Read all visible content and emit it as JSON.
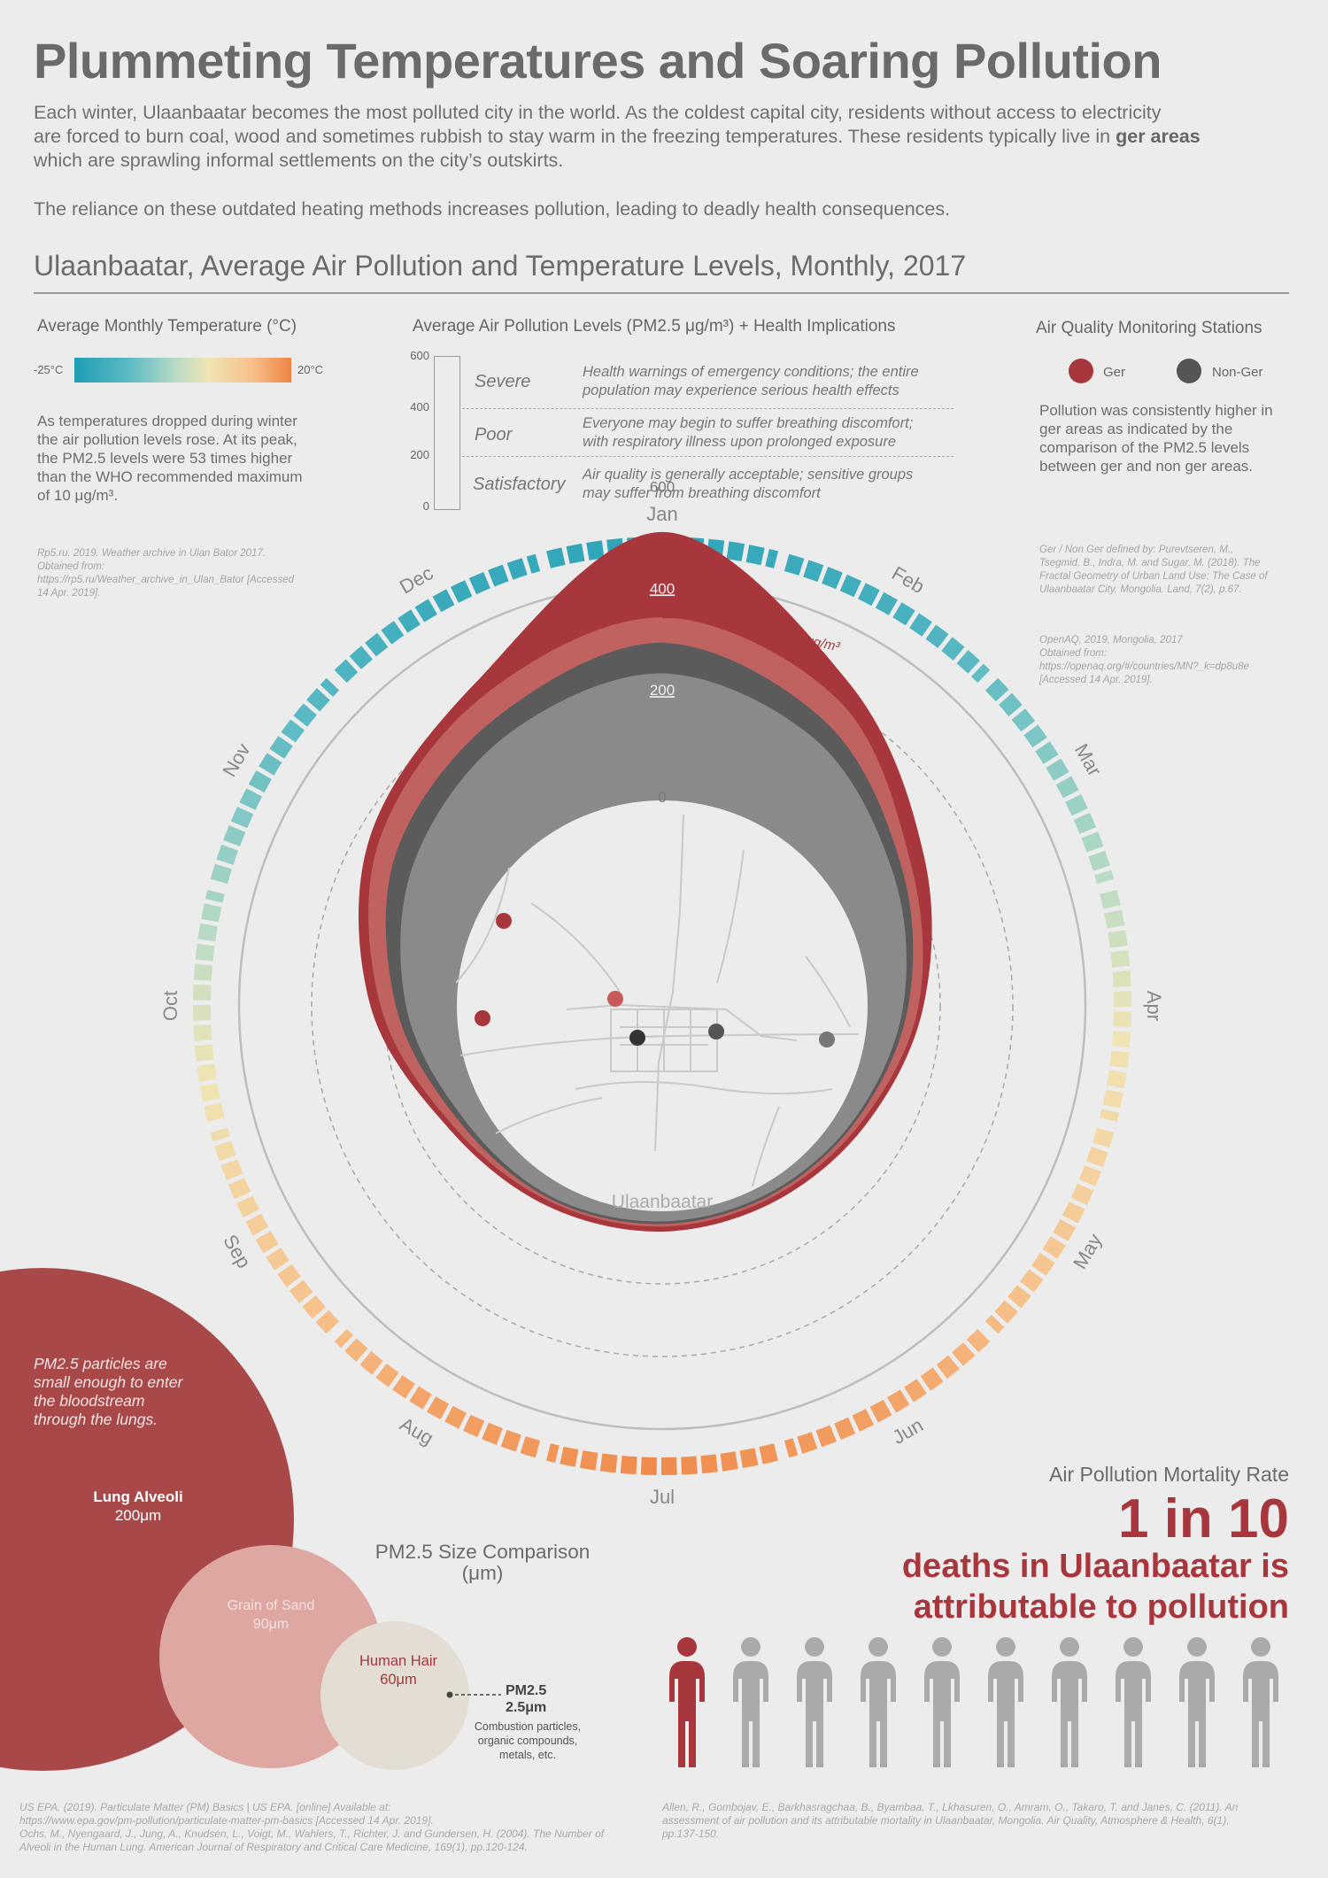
{
  "header": {
    "title": "Plummeting Temperatures and Soaring Pollution",
    "intro_lines": [
      "Each winter, Ulaanbaatar becomes the most polluted city in the world. As the coldest capital city, residents without access to electricity",
      "are forced to burn coal, wood and sometimes rubbish to stay warm in the freezing temperatures. These residents typically live in ger areas",
      "which are sprawling informal settlements on the city’s outskirts."
    ],
    "intro_bold": "ger areas",
    "intro2": "The reliance on these outdated heating methods increases pollution, leading to deadly health consequences.",
    "subtitle": "Ulaanbaatar, Average Air Pollution and Temperature Levels, Monthly, 2017"
  },
  "temperature_legend": {
    "title": "Average Monthly Temperature (°C)",
    "min_label": "-25°C",
    "max_label": "20°C",
    "note_lines": [
      "As temperatures dropped during winter",
      "the air pollution levels rose. At its peak,",
      "the PM2.5 levels were 53 times higher",
      "than the WHO recommended maximum",
      "of 10 μg/m³."
    ],
    "source_lines": [
      "Rp5.ru. 2019. Weather archive in Ulan Bator 2017.",
      "Obtained from:",
      "https://rp5.ru/Weather_archive_in_Ulan_Bator [Accessed",
      "14 Apr. 2019]."
    ],
    "colors": {
      "cold": "#1e9db4",
      "mild": "#f0e4b4",
      "warm": "#ee8443"
    }
  },
  "pollution_legend": {
    "title": "Average Air Pollution Levels (PM2.5 μg/m³) + Health Implications",
    "ticks": [
      "600",
      "400",
      "200",
      "0"
    ],
    "levels": [
      {
        "label": "Severe",
        "desc": [
          "Health warnings of emergency conditions; the entire",
          "population may experience serious health effects"
        ]
      },
      {
        "label": "Poor",
        "desc": [
          "Everyone may begin to suffer breathing discomfort;",
          "with respiratory illness upon prolonged exposure"
        ]
      },
      {
        "label": "Satisfactory",
        "desc": [
          "Air quality is generally acceptable; sensitive groups",
          "may suffer from breathing discomfort"
        ]
      }
    ]
  },
  "stations_legend": {
    "title": "Air Quality Monitoring Stations",
    "ger_label": "Ger",
    "nonger_label": "Non-Ger",
    "note_lines": [
      "Pollution was consistently higher in",
      "ger areas as indicated by the",
      "comparison of the PM2.5 levels",
      "between ger and non ger areas."
    ],
    "source1_lines": [
      "Ger / Non Ger defined by:  Purevtseren, M.,",
      "Tsegmid, B., Indra, M. and Sugar, M. (2018). The",
      "Fractal Geometry of Urban Land Use: The Case of",
      "Ulaanbaatar City, Mongolia. Land, 7(2), p.67."
    ],
    "source2_lines": [
      "OpenAQ, 2019, Mongolia, 2017",
      "Obtained from:",
      "https://openaq.org/#/countries/MN?_k=dp8u8e",
      "[Accessed 14 Apr. 2019]."
    ],
    "colors": {
      "ger": "#a8373d",
      "nonger": "#555555"
    }
  },
  "chart_data": {
    "type": "radial-area",
    "months": [
      "Jan",
      "Feb",
      "Mar",
      "Apr",
      "May",
      "Jun",
      "Jul",
      "Aug",
      "Sep",
      "Oct",
      "Nov",
      "Dec"
    ],
    "radial_ticks": [
      "600",
      "400",
      "200",
      "0"
    ],
    "rlim": [
      0,
      600
    ],
    "peak_annotation": "528.02μg/m³",
    "series": [
      {
        "name": "Ger",
        "values": [
          528,
          330,
          190,
          110,
          60,
          40,
          40,
          50,
          80,
          170,
          260,
          330
        ]
      },
      {
        "name": "Ger",
        "values": [
          360,
          290,
          160,
          100,
          50,
          30,
          30,
          40,
          70,
          150,
          240,
          300
        ]
      },
      {
        "name": "Non-Ger",
        "values": [
          310,
          240,
          140,
          80,
          40,
          25,
          25,
          35,
          55,
          120,
          200,
          250
        ]
      },
      {
        "name": "Non-Ger",
        "values": [
          250,
          200,
          120,
          70,
          35,
          20,
          20,
          30,
          45,
          100,
          160,
          210
        ]
      }
    ],
    "monthly_temperature_c": [
      -22,
      -18,
      -8,
      2,
      10,
      16,
      19,
      16,
      9,
      0,
      -12,
      -20
    ],
    "center_label": "Ulaanbaatar"
  },
  "size_comparison": {
    "title_line1": "PM2.5 Size Comparison",
    "title_line2": "(μm)",
    "note_lines": [
      "PM2.5 particles are",
      "small enough to enter",
      "the bloodstream",
      "through the lungs."
    ],
    "items": [
      {
        "name": "Lung Alveoli",
        "size": "200μm",
        "value": 200
      },
      {
        "name": "Grain of Sand",
        "size": "90μm",
        "value": 90
      },
      {
        "name": "Human Hair",
        "size": "60μm",
        "value": 60
      },
      {
        "name": "PM2.5",
        "size": "2.5μm",
        "value": 2.5
      }
    ],
    "pm_desc_lines": [
      "Combustion particles,",
      "organic compounds,",
      "metals, etc."
    ],
    "source_lines": [
      "US EPA. (2019). Particulate Matter (PM) Basics | US EPA. [online] Available at:",
      "https://www.epa.gov/pm-pollution/particulate-matter-pm-basics [Accessed 14 Apr. 2019].",
      "Ochs, M., Nyengaard, J., Jung, A., Knudsen, L., Voigt, M., Wahlers, T., Richter, J. and Gundersen, H. (2004). The Number of",
      "Alveoli in the Human Lung. American Journal of Respiratory and Critical Care Medicine, 169(1), pp.120-124."
    ]
  },
  "mortality": {
    "title": "Air Pollution Mortality Rate",
    "headline": "1 in 10",
    "sub_line1": "deaths in Ulaanbaatar is",
    "sub_line2": "attributable to pollution",
    "highlight_count": 1,
    "total_count": 10,
    "source_lines": [
      "Allen, R., Gombojav, E., Barkhasragchaa, B., Byambaa, T., Lkhasuren, O., Amram, O., Takaro, T. and Janes, C. (2011). An",
      "assessment of air pollution and its attributable mortality in Ulaanbaatar, Mongolia. Air Quality, Atmosphere & Health, 6(1),",
      "pp.137-150."
    ]
  }
}
